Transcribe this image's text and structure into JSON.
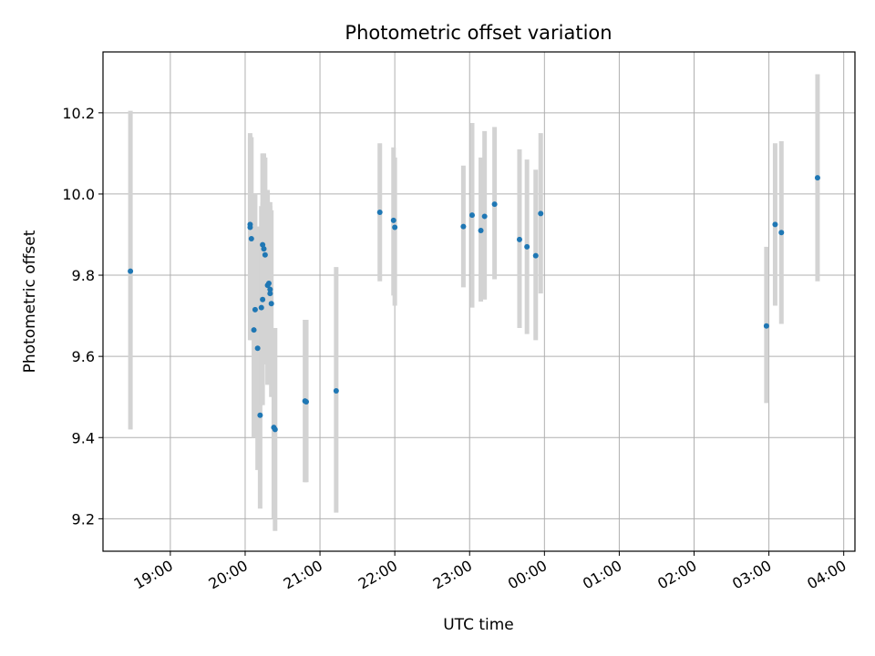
{
  "chart_data": {
    "type": "scatter",
    "title": "Photometric offset variation",
    "xlabel": "UTC time",
    "ylabel": "Photometric offset",
    "x_unit": "UTC time (day-crossing axis, times listed as hh:mm)",
    "xlim": [
      "18:06",
      "04:09"
    ],
    "ylim": [
      9.12,
      10.35
    ],
    "grid": true,
    "legend": "none",
    "colors": {
      "marker": "#1f77b4",
      "errorbar": "#d3d3d3",
      "grid": "#b0b0b0"
    },
    "x_ticks": [
      "19:00",
      "20:00",
      "21:00",
      "22:00",
      "23:00",
      "00:00",
      "01:00",
      "02:00",
      "03:00",
      "04:00"
    ],
    "y_ticks": [
      9.2,
      9.4,
      9.6,
      9.8,
      10.0,
      10.2
    ],
    "points": [
      {
        "x": "18:28",
        "y": 9.81,
        "lo": 9.42,
        "hi": 10.205
      },
      {
        "x": "20:04",
        "y": 9.925,
        "lo": 9.7,
        "hi": 10.15
      },
      {
        "x": "20:04",
        "y": 9.918,
        "lo": 9.64,
        "hi": 10.14
      },
      {
        "x": "20:05",
        "y": 9.89,
        "lo": 9.64,
        "hi": 10.14
      },
      {
        "x": "20:07",
        "y": 9.665,
        "lo": 9.4,
        "hi": 9.92
      },
      {
        "x": "20:08",
        "y": 9.715,
        "lo": 9.45,
        "hi": 10.0
      },
      {
        "x": "20:10",
        "y": 9.62,
        "lo": 9.32,
        "hi": 9.92
      },
      {
        "x": "20:12",
        "y": 9.455,
        "lo": 9.225,
        "hi": 9.7
      },
      {
        "x": "20:13",
        "y": 9.72,
        "lo": 9.48,
        "hi": 9.97
      },
      {
        "x": "20:14",
        "y": 9.74,
        "lo": 9.48,
        "hi": 9.98
      },
      {
        "x": "20:14",
        "y": 9.875,
        "lo": 9.62,
        "hi": 10.1
      },
      {
        "x": "20:15",
        "y": 9.865,
        "lo": 9.6,
        "hi": 10.1
      },
      {
        "x": "20:16",
        "y": 9.85,
        "lo": 9.58,
        "hi": 10.09
      },
      {
        "x": "20:18",
        "y": 9.775,
        "lo": 9.53,
        "hi": 10.01
      },
      {
        "x": "20:19",
        "y": 9.78,
        "lo": 9.55,
        "hi": 9.98
      },
      {
        "x": "20:20",
        "y": 9.765,
        "lo": 9.55,
        "hi": 9.98
      },
      {
        "x": "20:20",
        "y": 9.755,
        "lo": 9.55,
        "hi": 9.97
      },
      {
        "x": "20:21",
        "y": 9.73,
        "lo": 9.5,
        "hi": 9.96
      },
      {
        "x": "20:23",
        "y": 9.425,
        "lo": 9.2,
        "hi": 9.67
      },
      {
        "x": "20:24",
        "y": 9.42,
        "lo": 9.17,
        "hi": 9.67
      },
      {
        "x": "20:48",
        "y": 9.49,
        "lo": 9.29,
        "hi": 9.69
      },
      {
        "x": "20:49",
        "y": 9.488,
        "lo": 9.29,
        "hi": 9.69
      },
      {
        "x": "21:13",
        "y": 9.515,
        "lo": 9.215,
        "hi": 9.82
      },
      {
        "x": "21:48",
        "y": 9.955,
        "lo": 9.785,
        "hi": 10.125
      },
      {
        "x": "21:59",
        "y": 9.935,
        "lo": 9.75,
        "hi": 10.115
      },
      {
        "x": "22:00",
        "y": 9.918,
        "lo": 9.725,
        "hi": 10.09
      },
      {
        "x": "22:55",
        "y": 9.92,
        "lo": 9.77,
        "hi": 10.07
      },
      {
        "x": "23:02",
        "y": 9.948,
        "lo": 9.72,
        "hi": 10.175
      },
      {
        "x": "23:09",
        "y": 9.91,
        "lo": 9.735,
        "hi": 10.09
      },
      {
        "x": "23:12",
        "y": 9.945,
        "lo": 9.74,
        "hi": 10.155
      },
      {
        "x": "23:20",
        "y": 9.975,
        "lo": 9.79,
        "hi": 10.165
      },
      {
        "x": "23:40",
        "y": 9.888,
        "lo": 9.67,
        "hi": 10.11
      },
      {
        "x": "23:46",
        "y": 9.87,
        "lo": 9.655,
        "hi": 10.085
      },
      {
        "x": "23:53",
        "y": 9.848,
        "lo": 9.64,
        "hi": 10.06
      },
      {
        "x": "23:57",
        "y": 9.952,
        "lo": 9.755,
        "hi": 10.15
      },
      {
        "x": "02:58",
        "y": 9.675,
        "lo": 9.485,
        "hi": 9.87
      },
      {
        "x": "03:05",
        "y": 9.925,
        "lo": 9.725,
        "hi": 10.125
      },
      {
        "x": "03:10",
        "y": 9.905,
        "lo": 9.68,
        "hi": 10.13
      },
      {
        "x": "03:39",
        "y": 10.04,
        "lo": 9.785,
        "hi": 10.295
      }
    ]
  }
}
